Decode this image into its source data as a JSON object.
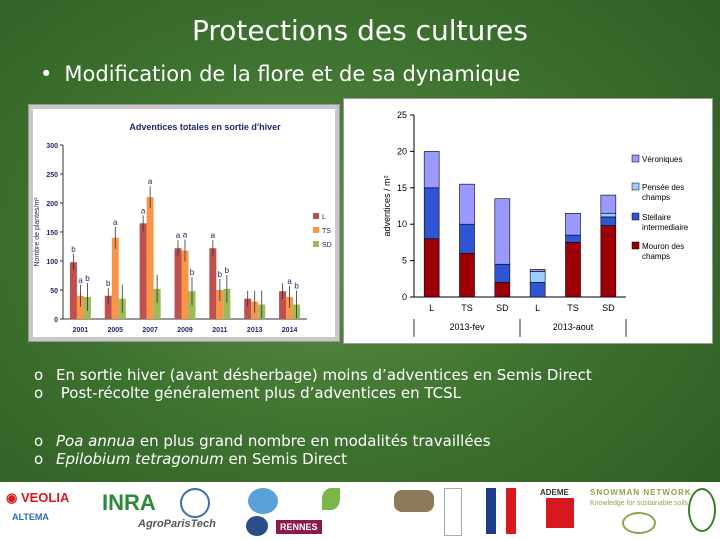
{
  "slide": {
    "title": "Protections des cultures",
    "bullet": "Modification de la flore et de sa dynamique",
    "notes_group1": [
      {
        "marker": "o",
        "text": "En sortie hiver (avant désherbage) moins d’adventices en Semis Direct"
      },
      {
        "marker": "o",
        "text": " Post-récolte généralement plus d’adventices en TCSL"
      }
    ],
    "notes_group2": [
      {
        "marker": "o",
        "italic": "Poa annua",
        "text": " en plus grand nombre en modalités travaillées"
      },
      {
        "marker": "o",
        "italic": "Epilobium tetragonum",
        "text": " en Semis Direct"
      }
    ]
  },
  "logos": [
    {
      "name": "veolia",
      "text": "VEOLIA",
      "color": "#d71920"
    },
    {
      "name": "altema",
      "text": "ALTEMA",
      "color": "#2b6cb0"
    },
    {
      "name": "inra",
      "text": "INRA",
      "color": "#2c8a3a"
    },
    {
      "name": "agroparistech",
      "text": "AgroParisTech",
      "color": "#555555"
    },
    {
      "name": "rennes",
      "text": "RENNES",
      "color": "#8b1a4a"
    },
    {
      "name": "ademe",
      "text": "ADEME",
      "color": "#333333"
    },
    {
      "name": "snowman-network",
      "text": "SNOWMAN NETWORK",
      "color": "#8aa64a"
    },
    {
      "name": "snowman-tagline",
      "text": "Knowledge for sustainable soils",
      "color": "#8aa64a"
    }
  ],
  "chart_data": [
    {
      "type": "bar",
      "title": "Adventices totales en sortie d'hiver",
      "ylabel": "Nombre de plantes/m²",
      "xlabel": "",
      "ylim": [
        0,
        300
      ],
      "yticks": [
        0,
        50,
        100,
        150,
        200,
        250,
        300
      ],
      "categories": [
        "2001",
        "2005",
        "2007",
        "2009",
        "2011",
        "2013",
        "2014"
      ],
      "legend": [
        "L",
        "TS",
        "SD"
      ],
      "legend_position": "right",
      "grid": false,
      "series": [
        {
          "name": "L",
          "color": "#c0504d",
          "values": [
            98,
            40,
            165,
            122,
            122,
            35,
            48
          ],
          "letters": [
            "b",
            "b",
            "a",
            "a",
            "a",
            "",
            ""
          ]
        },
        {
          "name": "TS",
          "color": "#f79646",
          "values": [
            40,
            140,
            210,
            118,
            50,
            30,
            38
          ],
          "letters": [
            "a",
            "a",
            "a",
            "a",
            "b",
            "",
            "a"
          ]
        },
        {
          "name": "SD",
          "color": "#9bbb59",
          "values": [
            38,
            35,
            52,
            48,
            52,
            25,
            25
          ],
          "letters": [
            "b",
            "",
            "",
            "b",
            "b",
            "",
            "b"
          ]
        }
      ]
    },
    {
      "type": "bar",
      "stacked": true,
      "title": "",
      "ylabel": "adventices / m²",
      "xlabel": "",
      "ylim": [
        0,
        25
      ],
      "yticks": [
        0,
        5,
        10,
        15,
        20,
        25
      ],
      "categories": [
        "L",
        "TS",
        "SD",
        "L",
        "TS",
        "SD"
      ],
      "groups": [
        {
          "label": "2013-fev",
          "span": [
            0,
            2
          ]
        },
        {
          "label": "2013-aout",
          "span": [
            3,
            5
          ]
        }
      ],
      "legend_position": "right",
      "series": [
        {
          "name": "Mouron des champs",
          "color": "#9c0006",
          "values": [
            8,
            6,
            2,
            0,
            7.5,
            9.8
          ]
        },
        {
          "name": "Stellaire intermediaire",
          "color": "#2f55d4",
          "values": [
            7,
            4,
            2.5,
            2,
            1,
            1.2
          ]
        },
        {
          "name": "Pensée des champs",
          "color": "#99ccff",
          "values": [
            0,
            0,
            0,
            1.5,
            0,
            0.5
          ]
        },
        {
          "name": "Véroniques",
          "color": "#9999ff",
          "values": [
            5,
            5.5,
            9,
            0.3,
            3,
            2.5
          ]
        }
      ]
    }
  ]
}
